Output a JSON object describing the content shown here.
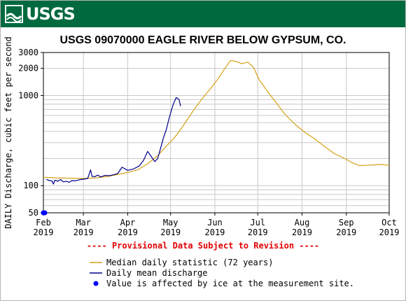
{
  "header": {
    "logo_text": "USGS",
    "brand_color": "#006a3e",
    "logo_icon": "usgs-wave-icon"
  },
  "chart_data": {
    "type": "line",
    "title": "USGS 09070000 EAGLE RIVER BELOW GYPSUM, CO.",
    "ylabel": "DAILY Discharge, cubic feet per second",
    "xlabel": "",
    "y_scale": "log",
    "ylim": [
      50,
      3000
    ],
    "xlim": [
      "2019-02-01",
      "2019-10-01"
    ],
    "yticks": [
      50,
      100,
      1000,
      2000,
      3000
    ],
    "xticks": [
      {
        "date": "2019-02-01",
        "label": [
          "Feb",
          "2019"
        ]
      },
      {
        "date": "2019-03-01",
        "label": [
          "Mar",
          "2019"
        ]
      },
      {
        "date": "2019-04-01",
        "label": [
          "Apr",
          "2019"
        ]
      },
      {
        "date": "2019-05-01",
        "label": [
          "May",
          "2019"
        ]
      },
      {
        "date": "2019-06-01",
        "label": [
          "Jun",
          "2019"
        ]
      },
      {
        "date": "2019-07-01",
        "label": [
          "Jul",
          "2019"
        ]
      },
      {
        "date": "2019-08-01",
        "label": [
          "Aug",
          "2019"
        ]
      },
      {
        "date": "2019-09-01",
        "label": [
          "Sep",
          "2019"
        ]
      },
      {
        "date": "2019-10-01",
        "label": [
          "Oct",
          "2019"
        ]
      }
    ],
    "grid": true,
    "annotation": "---- Provisional Data Subject to Revision ----",
    "series": [
      {
        "name": "Median daily statistic (72 years)",
        "color": "#d4a017",
        "points": [
          [
            "2019-02-01",
            124
          ],
          [
            "2019-02-10",
            122
          ],
          [
            "2019-02-20",
            121
          ],
          [
            "2019-03-01",
            120
          ],
          [
            "2019-03-10",
            122
          ],
          [
            "2019-03-20",
            128
          ],
          [
            "2019-03-25",
            133
          ],
          [
            "2019-04-01",
            140
          ],
          [
            "2019-04-08",
            150
          ],
          [
            "2019-04-15",
            175
          ],
          [
            "2019-04-22",
            215
          ],
          [
            "2019-04-28",
            275
          ],
          [
            "2019-05-03",
            330
          ],
          [
            "2019-05-08",
            420
          ],
          [
            "2019-05-12",
            520
          ],
          [
            "2019-05-18",
            720
          ],
          [
            "2019-05-24",
            960
          ],
          [
            "2019-05-30",
            1250
          ],
          [
            "2019-06-04",
            1600
          ],
          [
            "2019-06-08",
            2000
          ],
          [
            "2019-06-12",
            2450
          ],
          [
            "2019-06-16",
            2380
          ],
          [
            "2019-06-20",
            2250
          ],
          [
            "2019-06-24",
            2350
          ],
          [
            "2019-06-28",
            2050
          ],
          [
            "2019-07-02",
            1500
          ],
          [
            "2019-07-08",
            1100
          ],
          [
            "2019-07-14",
            830
          ],
          [
            "2019-07-20",
            620
          ],
          [
            "2019-07-27",
            480
          ],
          [
            "2019-08-03",
            390
          ],
          [
            "2019-08-10",
            330
          ],
          [
            "2019-08-17",
            270
          ],
          [
            "2019-08-24",
            225
          ],
          [
            "2019-08-31",
            200
          ],
          [
            "2019-09-05",
            180
          ],
          [
            "2019-09-10",
            167
          ],
          [
            "2019-09-15",
            168
          ],
          [
            "2019-09-20",
            170
          ],
          [
            "2019-09-25",
            172
          ],
          [
            "2019-10-01",
            168
          ]
        ]
      },
      {
        "name": "Daily mean discharge",
        "color": "#00008b",
        "points": [
          [
            "2019-02-03",
            118
          ],
          [
            "2019-02-05",
            114
          ],
          [
            "2019-02-07",
            113
          ],
          [
            "2019-02-08",
            104
          ],
          [
            "2019-02-09",
            115
          ],
          [
            "2019-02-11",
            112
          ],
          [
            "2019-02-13",
            117
          ],
          [
            "2019-02-15",
            110
          ],
          [
            "2019-02-17",
            112
          ],
          [
            "2019-02-19",
            109
          ],
          [
            "2019-02-21",
            114
          ],
          [
            "2019-02-23",
            113
          ],
          [
            "2019-02-25",
            115
          ],
          [
            "2019-02-27",
            117
          ],
          [
            "2019-03-01",
            118
          ],
          [
            "2019-03-04",
            120
          ],
          [
            "2019-03-06",
            150
          ],
          [
            "2019-03-07",
            127
          ],
          [
            "2019-03-09",
            126
          ],
          [
            "2019-03-11",
            131
          ],
          [
            "2019-03-13",
            125
          ],
          [
            "2019-03-16",
            130
          ],
          [
            "2019-03-19",
            129
          ],
          [
            "2019-03-22",
            132
          ],
          [
            "2019-03-25",
            136
          ],
          [
            "2019-03-28",
            160
          ],
          [
            "2019-04-01",
            148
          ],
          [
            "2019-04-05",
            153
          ],
          [
            "2019-04-09",
            165
          ],
          [
            "2019-04-12",
            190
          ],
          [
            "2019-04-15",
            240
          ],
          [
            "2019-04-18",
            205
          ],
          [
            "2019-04-20",
            185
          ],
          [
            "2019-04-22",
            200
          ],
          [
            "2019-04-24",
            260
          ],
          [
            "2019-04-26",
            340
          ],
          [
            "2019-04-28",
            420
          ],
          [
            "2019-04-30",
            560
          ],
          [
            "2019-05-02",
            720
          ],
          [
            "2019-05-03",
            810
          ],
          [
            "2019-05-05",
            950
          ],
          [
            "2019-05-07",
            900
          ],
          [
            "2019-05-08",
            760
          ]
        ]
      }
    ],
    "ice_points": [
      [
        "2019-02-01",
        50
      ],
      [
        "2019-02-02",
        50
      ]
    ],
    "legend": {
      "placement": "bottom",
      "items": [
        {
          "label": "Median daily statistic (72 years)",
          "type": "line",
          "color": "#d4a017"
        },
        {
          "label": "Daily mean discharge",
          "type": "line",
          "color": "#00008b"
        },
        {
          "label": "Value is affected by ice at the measurement site.",
          "type": "dot",
          "color": "#0000ff"
        }
      ]
    }
  }
}
